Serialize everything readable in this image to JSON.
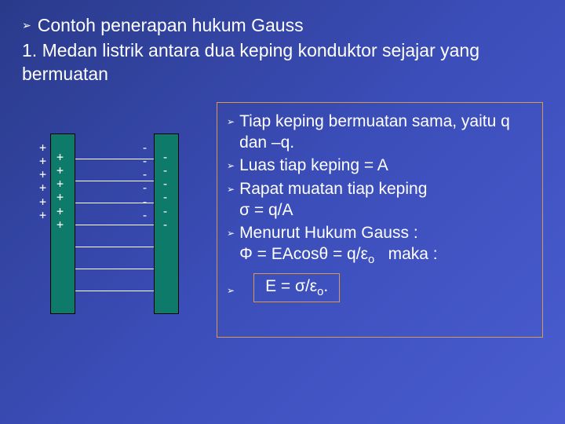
{
  "top": {
    "bullet1": "Contoh penerapan hukum Gauss",
    "numbered": "1. Medan listrik antara dua keping konduktor sejajar yang bermuatan"
  },
  "diagram": {
    "plate_color": "#0d7a6a",
    "left_charges_outer": "+\n+\n+\n+\n+\n+",
    "left_charges_inner": "+\n+\n+\n+\n+\n+",
    "right_charges_inner": "-\n-\n-\n-\n-\n-",
    "right_charges_outer": "-\n-\n-\n-\n-\n-",
    "field_lines_y": [
      72,
      100,
      128,
      156,
      184,
      212,
      240
    ]
  },
  "side": {
    "b1": "Tiap keping bermuatan sama, yaitu q dan –q.",
    "b2": "Luas tiap keping = A",
    "b3a": "Rapat muatan tiap keping",
    "b3b": "σ = q/A",
    "b4a": "Menurut Hukum Gauss :",
    "b4b": "Φ = EAcosθ = q/εo   maka :",
    "final": "E = σ/εo."
  },
  "colors": {
    "border": "#d89a4a",
    "text": "#ffffff"
  }
}
